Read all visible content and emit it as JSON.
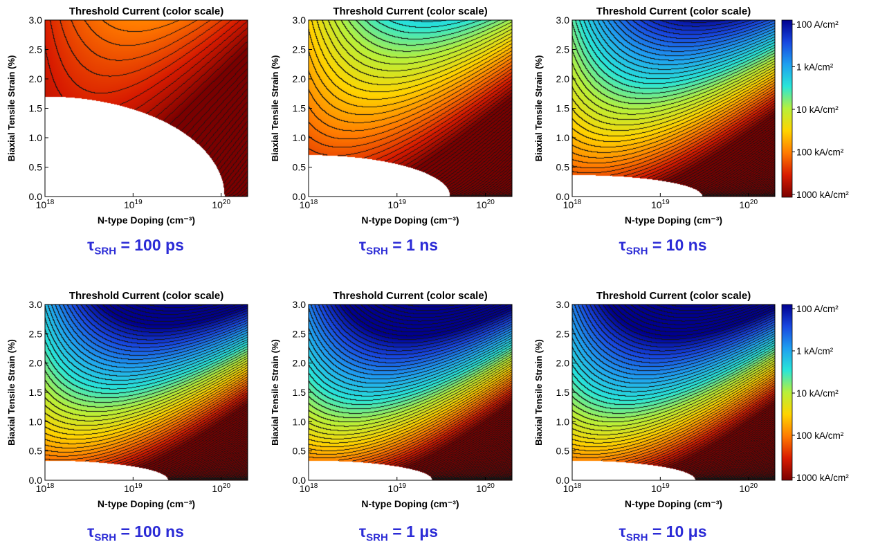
{
  "figure": {
    "colorbar": {
      "labels": [
        "100 A/cm²",
        "1 kA/cm²",
        "10 kA/cm²",
        "100 kA/cm²",
        "1000 kA/cm²"
      ],
      "colors": [
        "#7a0000",
        "#d81b00",
        "#ff7a00",
        "#ffd400",
        "#b8f03a",
        "#29e6d8",
        "#1fa0f0",
        "#1848e0",
        "#00008f"
      ]
    }
  },
  "chart_data": [
    {
      "type": "heatmap",
      "title": "Threshold Current (color scale)",
      "xlabel": "N-type Doping (cm⁻³)",
      "ylabel": "Biaxial Tensile Strain (%)",
      "panel_label": {
        "symbol": "τ",
        "subscript": "SRH",
        "value": "= 100 ps"
      },
      "x_scale": "log",
      "xlim": [
        1e+18,
        2e+20
      ],
      "x_ticks": [
        {
          "value": 1e+18,
          "base": "10",
          "exp": "18"
        },
        {
          "value": 1e+19,
          "base": "10",
          "exp": "19"
        },
        {
          "value": 1e+20,
          "base": "10",
          "exp": "20"
        }
      ],
      "ylim": [
        0,
        3
      ],
      "y_ticks": [
        "0.0",
        "0.5",
        "1.0",
        "1.5",
        "2.0",
        "2.5",
        "3.0"
      ],
      "color_scale": "log threshold current, 100 A/cm² (blue) to 1000 kA/cm² (dark red)",
      "threshold_kA_per_cm2_at": {
        "doping_1e18_strain_3.0": 300,
        "doping_1e19_strain_3.0": 120,
        "doping_6e19_strain_3.0": 90,
        "doping_1e18_strain_1.8": 800
      },
      "no_lasing_region": "below strain 1.7 at 1e18 falling to 0 near 1.1e20"
    },
    {
      "type": "heatmap",
      "title": "Threshold Current (color scale)",
      "xlabel": "N-type Doping (cm⁻³)",
      "ylabel": "Biaxial Tensile Strain (%)",
      "panel_label": {
        "symbol": "τ",
        "subscript": "SRH",
        "value": "= 1 ns"
      },
      "x_scale": "log",
      "xlim": [
        1e+18,
        2e+20
      ],
      "x_ticks": [
        {
          "value": 1e+18,
          "base": "10",
          "exp": "18"
        },
        {
          "value": 1e+19,
          "base": "10",
          "exp": "19"
        },
        {
          "value": 1e+20,
          "base": "10",
          "exp": "20"
        }
      ],
      "ylim": [
        0,
        3
      ],
      "y_ticks": [
        "0.0",
        "0.5",
        "1.0",
        "1.5",
        "2.0",
        "2.5",
        "3.0"
      ],
      "color_scale": "log threshold current, 100 A/cm² (blue) to 1000 kA/cm² (dark red)",
      "threshold_kA_per_cm2_at": {
        "doping_1e18_strain_3.0": 25,
        "doping_1e19_strain_3.0": 5,
        "doping_1e19_strain_1.0": 300,
        "doping_1e20_strain_1.0": 50
      },
      "no_lasing_region": "below strain 0.7 at 1e18 falling to 0 near 4e19"
    },
    {
      "type": "heatmap",
      "title": "Threshold Current (color scale)",
      "xlabel": "N-type Doping (cm⁻³)",
      "ylabel": "Biaxial Tensile Strain (%)",
      "panel_label": {
        "symbol": "τ",
        "subscript": "SRH",
        "value": "= 10 ns"
      },
      "x_scale": "log",
      "xlim": [
        1e+18,
        2e+20
      ],
      "x_ticks": [
        {
          "value": 1e+18,
          "base": "10",
          "exp": "18"
        },
        {
          "value": 1e+19,
          "base": "10",
          "exp": "19"
        },
        {
          "value": 1e+20,
          "base": "10",
          "exp": "20"
        }
      ],
      "ylim": [
        0,
        3
      ],
      "y_ticks": [
        "0.0",
        "0.5",
        "1.0",
        "1.5",
        "2.0",
        "2.5",
        "3.0"
      ],
      "color_scale": "log threshold current, 100 A/cm² (blue) to 1000 kA/cm² (dark red)",
      "threshold_kA_per_cm2_at": {
        "doping_1e18_strain_3.0": 3,
        "doping_1e19_strain_3.0": 1.5,
        "doping_1e19_strain_0.5": 300,
        "doping_1e20_strain_0.5": 30
      },
      "no_lasing_region": "below strain 0.35 at 1e18 falling to 0 near 3e19"
    },
    {
      "type": "heatmap",
      "title": "Threshold Current (color scale)",
      "xlabel": "N-type Doping (cm⁻³)",
      "ylabel": "Biaxial Tensile Strain (%)",
      "panel_label": {
        "symbol": "τ",
        "subscript": "SRH",
        "value": "= 100 ns"
      },
      "x_scale": "log",
      "xlim": [
        1e+18,
        2e+20
      ],
      "x_ticks": [
        {
          "value": 1e+18,
          "base": "10",
          "exp": "18"
        },
        {
          "value": 1e+19,
          "base": "10",
          "exp": "19"
        },
        {
          "value": 1e+20,
          "base": "10",
          "exp": "20"
        }
      ],
      "ylim": [
        0,
        3
      ],
      "y_ticks": [
        "0.0",
        "0.5",
        "1.0",
        "1.5",
        "2.0",
        "2.5",
        "3.0"
      ],
      "color_scale": "log threshold current, 100 A/cm² (blue) to 1000 kA/cm² (dark red)",
      "threshold_kA_per_cm2_at": {
        "doping_1e18_strain_3.0": 0.6,
        "doping_1e19_strain_3.0": 0.4,
        "doping_1e19_strain_0.5": 300,
        "doping_1e20_strain_0.5": 30
      },
      "no_lasing_region": "below strain 0.32 at 1e18 falling to 0 near 2.5e19"
    },
    {
      "type": "heatmap",
      "title": "Threshold Current (color scale)",
      "xlabel": "N-type Doping (cm⁻³)",
      "ylabel": "Biaxial Tensile Strain (%)",
      "panel_label": {
        "symbol": "τ",
        "subscript": "SRH",
        "value": "= 1 μs"
      },
      "x_scale": "log",
      "xlim": [
        1e+18,
        2e+20
      ],
      "x_ticks": [
        {
          "value": 1e+18,
          "base": "10",
          "exp": "18"
        },
        {
          "value": 1e+19,
          "base": "10",
          "exp": "19"
        },
        {
          "value": 1e+20,
          "base": "10",
          "exp": "20"
        }
      ],
      "ylim": [
        0,
        3
      ],
      "y_ticks": [
        "0.0",
        "0.5",
        "1.0",
        "1.5",
        "2.0",
        "2.5",
        "3.0"
      ],
      "color_scale": "log threshold current, 100 A/cm² (blue) to 1000 kA/cm² (dark red)",
      "threshold_kA_per_cm2_at": {
        "doping_1e18_strain_3.0": 0.3,
        "doping_1e19_strain_3.0": 0.2,
        "doping_1e19_strain_0.5": 300,
        "doping_1e20_strain_0.5": 30
      },
      "no_lasing_region": "below strain 0.32 at 1e18 falling to 0 near 2.5e19"
    },
    {
      "type": "heatmap",
      "title": "Threshold Current (color scale)",
      "xlabel": "N-type Doping (cm⁻³)",
      "ylabel": "Biaxial Tensile Strain (%)",
      "panel_label": {
        "symbol": "τ",
        "subscript": "SRH",
        "value": "= 10 μs"
      },
      "x_scale": "log",
      "xlim": [
        1e+18,
        2e+20
      ],
      "x_ticks": [
        {
          "value": 1e+18,
          "base": "10",
          "exp": "18"
        },
        {
          "value": 1e+19,
          "base": "10",
          "exp": "19"
        },
        {
          "value": 1e+20,
          "base": "10",
          "exp": "20"
        }
      ],
      "ylim": [
        0,
        3
      ],
      "y_ticks": [
        "0.0",
        "0.5",
        "1.0",
        "1.5",
        "2.0",
        "2.5",
        "3.0"
      ],
      "color_scale": "log threshold current, 100 A/cm² (blue) to 1000 kA/cm² (dark red)",
      "threshold_kA_per_cm2_at": {
        "doping_1e18_strain_3.0": 0.3,
        "doping_1e19_strain_3.0": 0.2,
        "doping_1e19_strain_0.5": 300,
        "doping_1e20_strain_0.5": 30
      },
      "no_lasing_region": "below strain 0.32 at 1e18 falling to 0 near 2.5e19"
    }
  ]
}
